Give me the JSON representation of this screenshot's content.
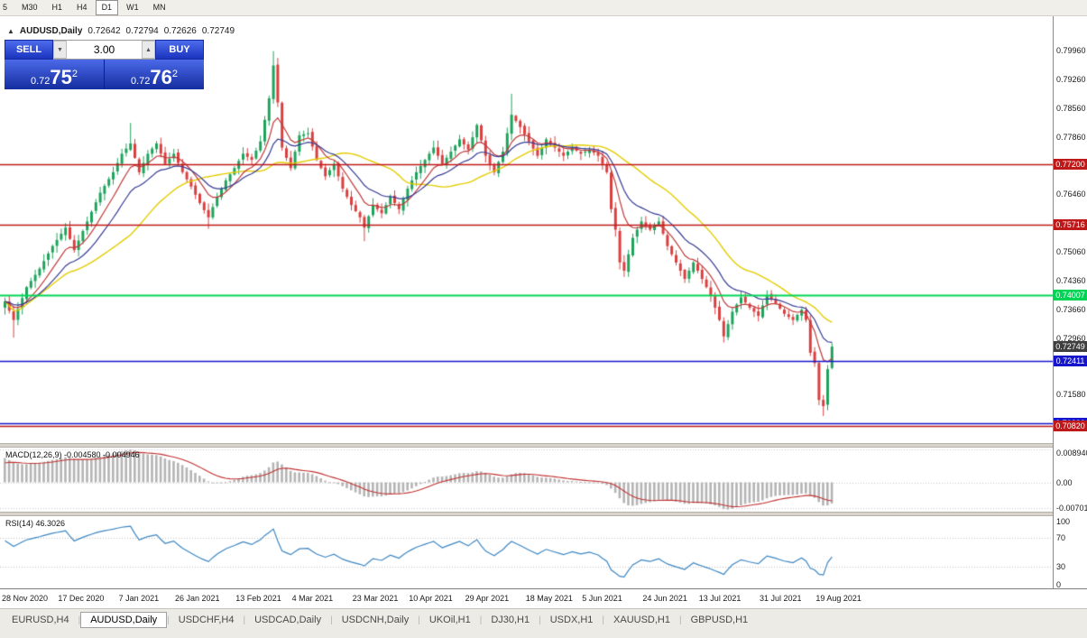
{
  "toolbar": {
    "timeframes": [
      {
        "label": "5",
        "active": false
      },
      {
        "label": "M30",
        "active": false
      },
      {
        "label": "H1",
        "active": false
      },
      {
        "label": "H4",
        "active": false
      },
      {
        "label": "D1",
        "active": true
      },
      {
        "label": "W1",
        "active": false
      },
      {
        "label": "MN",
        "active": false
      }
    ]
  },
  "chart_header": {
    "collapse_icon": "▲",
    "symbol": "AUDUSD,Daily",
    "open": "0.72642",
    "high": "0.72794",
    "low": "0.72626",
    "close": "0.72749"
  },
  "trade_panel": {
    "sell_label": "SELL",
    "buy_label": "BUY",
    "volume": "3.00",
    "vol_down_icon": "▼",
    "vol_up_icon": "▲",
    "bid_prefix": "0.72",
    "bid_big": "75",
    "bid_sup": "2",
    "ask_prefix": "0.72",
    "ask_big": "76",
    "ask_sup": "2"
  },
  "price_axis": {
    "ticks": [
      {
        "label": "0.79960",
        "price": 0.7996
      },
      {
        "label": "0.79260",
        "price": 0.7926
      },
      {
        "label": "0.78560",
        "price": 0.7856
      },
      {
        "label": "0.77860",
        "price": 0.7786
      },
      {
        "label": "0.76460",
        "price": 0.7646
      },
      {
        "label": "0.75060",
        "price": 0.7506
      },
      {
        "label": "0.74360",
        "price": 0.7436
      },
      {
        "label": "0.73660",
        "price": 0.7366
      },
      {
        "label": "0.72960",
        "price": 0.7296
      },
      {
        "label": "0.71580",
        "price": 0.7158
      }
    ],
    "levels": [
      {
        "label": "0.77200",
        "price": 0.772,
        "color": "#bf1818",
        "width": 1.3
      },
      {
        "label": "0.75716",
        "price": 0.75716,
        "color": "#bf1818",
        "width": 1.3
      },
      {
        "label": "0.74007",
        "price": 0.74007,
        "color": "#00d455",
        "width": 2
      },
      {
        "label": "0.72411",
        "price": 0.72411,
        "color": "#1515cc",
        "width": 1.3
      },
      {
        "label": "0.70880",
        "price": 0.7088,
        "color": "#1515cc",
        "width": 1.3
      },
      {
        "label": "0.70820",
        "price": 0.7082,
        "color": "#bf1818",
        "width": 1.6
      }
    ],
    "current": {
      "label": "0.72749",
      "price": 0.72749,
      "color": "#3f3f3f"
    }
  },
  "indicators": {
    "macd": {
      "label": "MACD(12,26,9) -0.004580 -0.004946",
      "axis": [
        {
          "label": "0.008940",
          "value": 0.00894
        },
        {
          "label": "0.00",
          "value": 0
        },
        {
          "label": "-0.00701",
          "value": -0.00701
        }
      ],
      "fast": 12,
      "slow": 26,
      "signal": 9,
      "range": [
        -0.008,
        0.0095
      ],
      "hist_color": "#b4b4b4",
      "line_color": "#c03030"
    },
    "rsi": {
      "label": "RSI(14) 46.3026",
      "axis": [
        {
          "label": "100",
          "value": 100
        },
        {
          "label": "70",
          "value": 70
        },
        {
          "label": "30",
          "value": 30
        },
        {
          "label": "0",
          "value": 0
        }
      ],
      "period": 14,
      "color": "#3c86c2",
      "levels": [
        30,
        70
      ]
    }
  },
  "date_axis": [
    {
      "label": "28 Nov 2020",
      "i": 0
    },
    {
      "label": "17 Dec 2020",
      "i": 13
    },
    {
      "label": "7 Jan 2021",
      "i": 27
    },
    {
      "label": "26 Jan 2021",
      "i": 40
    },
    {
      "label": "13 Feb 2021",
      "i": 54
    },
    {
      "label": "4 Mar 2021",
      "i": 67
    },
    {
      "label": "23 Mar 2021",
      "i": 81
    },
    {
      "label": "10 Apr 2021",
      "i": 94
    },
    {
      "label": "29 Apr 2021",
      "i": 107
    },
    {
      "label": "18 May 2021",
      "i": 121
    },
    {
      "label": "5 Jun 2021",
      "i": 134
    },
    {
      "label": "24 Jun 2021",
      "i": 148
    },
    {
      "label": "13 Jul 2021",
      "i": 161
    },
    {
      "label": "31 Jul 2021",
      "i": 175
    },
    {
      "label": "19 Aug 2021",
      "i": 188
    }
  ],
  "tabs": [
    {
      "label": "EURUSD,H4",
      "active": false
    },
    {
      "label": "AUDUSD,Daily",
      "active": true
    },
    {
      "label": "USDCHF,H4",
      "active": false
    },
    {
      "label": "USDCAD,Daily",
      "active": false
    },
    {
      "label": "USDCNH,Daily",
      "active": false
    },
    {
      "label": "UKOil,H1",
      "active": false
    },
    {
      "label": "DJ30,H1",
      "active": false
    },
    {
      "label": "USDX,H1",
      "active": false
    },
    {
      "label": "XAUUSD,H1",
      "active": false
    },
    {
      "label": "GBPUSD,H1",
      "active": false
    }
  ],
  "chart_data": {
    "type": "candlestick",
    "title": "AUDUSD,Daily",
    "ohlc_display": {
      "open": "0.72642",
      "high": "0.72794",
      "low": "0.72626",
      "close": "0.72749"
    },
    "price_range": {
      "top": 0.808,
      "bottom": 0.704
    },
    "n_candles": 192,
    "up_color": "#1fa35c",
    "down_color": "#d94040",
    "close_anchors": [
      [
        0,
        0.7385
      ],
      [
        2,
        0.734
      ],
      [
        5,
        0.742
      ],
      [
        8,
        0.7465
      ],
      [
        11,
        0.752
      ],
      [
        14,
        0.7565
      ],
      [
        16,
        0.751
      ],
      [
        19,
        0.758
      ],
      [
        22,
        0.765
      ],
      [
        25,
        0.77
      ],
      [
        27,
        0.7745
      ],
      [
        29,
        0.777
      ],
      [
        31,
        0.77
      ],
      [
        33,
        0.7745
      ],
      [
        35,
        0.777
      ],
      [
        37,
        0.772
      ],
      [
        39,
        0.7745
      ],
      [
        41,
        0.77
      ],
      [
        43,
        0.7665
      ],
      [
        45,
        0.7625
      ],
      [
        47,
        0.759
      ],
      [
        49,
        0.764
      ],
      [
        51,
        0.768
      ],
      [
        53,
        0.771
      ],
      [
        55,
        0.7745
      ],
      [
        57,
        0.773
      ],
      [
        59,
        0.7775
      ],
      [
        61,
        0.788
      ],
      [
        62,
        0.796
      ],
      [
        63,
        0.787
      ],
      [
        64,
        0.776
      ],
      [
        66,
        0.771
      ],
      [
        68,
        0.779
      ],
      [
        70,
        0.7795
      ],
      [
        72,
        0.773
      ],
      [
        74,
        0.769
      ],
      [
        76,
        0.772
      ],
      [
        78,
        0.766
      ],
      [
        80,
        0.762
      ],
      [
        82,
        0.759
      ],
      [
        83,
        0.7565
      ],
      [
        85,
        0.762
      ],
      [
        87,
        0.76
      ],
      [
        89,
        0.764
      ],
      [
        91,
        0.761
      ],
      [
        93,
        0.766
      ],
      [
        95,
        0.77
      ],
      [
        97,
        0.773
      ],
      [
        99,
        0.776
      ],
      [
        101,
        0.772
      ],
      [
        103,
        0.775
      ],
      [
        105,
        0.778
      ],
      [
        107,
        0.7755
      ],
      [
        109,
        0.7815
      ],
      [
        111,
        0.774
      ],
      [
        113,
        0.77
      ],
      [
        115,
        0.775
      ],
      [
        117,
        0.784
      ],
      [
        119,
        0.781
      ],
      [
        121,
        0.7775
      ],
      [
        123,
        0.774
      ],
      [
        125,
        0.778
      ],
      [
        127,
        0.776
      ],
      [
        129,
        0.774
      ],
      [
        131,
        0.776
      ],
      [
        133,
        0.7745
      ],
      [
        135,
        0.7755
      ],
      [
        137,
        0.774
      ],
      [
        139,
        0.77
      ],
      [
        140,
        0.761
      ],
      [
        141,
        0.756
      ],
      [
        142,
        0.748
      ],
      [
        143,
        0.746
      ],
      [
        145,
        0.754
      ],
      [
        147,
        0.758
      ],
      [
        149,
        0.756
      ],
      [
        151,
        0.758
      ],
      [
        153,
        0.752
      ],
      [
        155,
        0.748
      ],
      [
        157,
        0.744
      ],
      [
        159,
        0.748
      ],
      [
        161,
        0.744
      ],
      [
        163,
        0.74
      ],
      [
        165,
        0.734
      ],
      [
        166,
        0.73
      ],
      [
        168,
        0.736
      ],
      [
        170,
        0.7395
      ],
      [
        172,
        0.737
      ],
      [
        174,
        0.735
      ],
      [
        176,
        0.74
      ],
      [
        178,
        0.738
      ],
      [
        180,
        0.7355
      ],
      [
        182,
        0.734
      ],
      [
        184,
        0.7365
      ],
      [
        185,
        0.734
      ],
      [
        186,
        0.726
      ],
      [
        187,
        0.7235
      ],
      [
        188,
        0.7145
      ],
      [
        189,
        0.713
      ],
      [
        190,
        0.722
      ],
      [
        191,
        0.7275
      ]
    ],
    "wick_overrides": {
      "2": {
        "low": 0.7297
      },
      "29": {
        "high": 0.782
      },
      "47": {
        "low": 0.7562
      },
      "62": {
        "high": 0.7995
      },
      "83": {
        "low": 0.7532
      },
      "117": {
        "high": 0.7891
      },
      "143": {
        "low": 0.7445
      },
      "166": {
        "low": 0.729
      },
      "189": {
        "low": 0.7106
      },
      "191": {
        "high": 0.728
      }
    },
    "moving_averages": [
      {
        "kind": "sma",
        "period": 30,
        "color": "#e3cc00",
        "width": 1.4
      },
      {
        "kind": "ema",
        "period": 8,
        "color": "#c03a3a",
        "width": 1.2
      },
      {
        "kind": "ema",
        "period": 16,
        "color": "#353a93",
        "width": 1.2
      }
    ]
  }
}
